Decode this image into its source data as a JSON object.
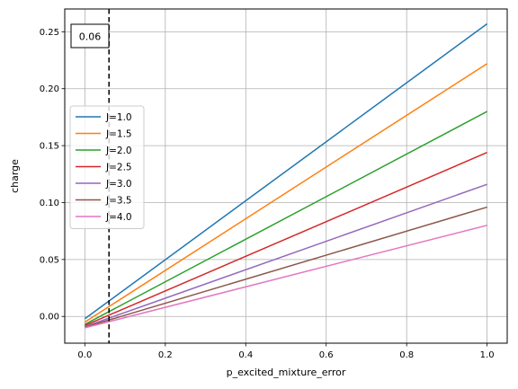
{
  "chart_data": {
    "type": "line",
    "title": "",
    "xlabel": "p_excited_mixture_error",
    "ylabel": "charge",
    "xlim": [
      -0.05,
      1.05
    ],
    "ylim": [
      -0.0235,
      0.27
    ],
    "xticks": [
      0.0,
      0.2,
      0.4,
      0.6,
      0.8,
      1.0
    ],
    "xtick_labels": [
      "0.0",
      "0.2",
      "0.4",
      "0.6",
      "0.8",
      "1.0"
    ],
    "yticks": [
      0.0,
      0.05,
      0.1,
      0.15,
      0.2,
      0.25
    ],
    "ytick_labels": [
      "0.00",
      "0.05",
      "0.10",
      "0.15",
      "0.20",
      "0.25"
    ],
    "grid": true,
    "legend_position": "center-left",
    "x": [
      0.0,
      1.0
    ],
    "series": [
      {
        "name": "J=1.0",
        "color": "#1f77b4",
        "values": [
          -0.002,
          0.257
        ]
      },
      {
        "name": "J=1.5",
        "color": "#ff7f0e",
        "values": [
          -0.005,
          0.222
        ]
      },
      {
        "name": "J=2.0",
        "color": "#2ca02c",
        "values": [
          -0.007,
          0.18
        ]
      },
      {
        "name": "J=2.5",
        "color": "#d62728",
        "values": [
          -0.008,
          0.144
        ]
      },
      {
        "name": "J=3.0",
        "color": "#9467bd",
        "values": [
          -0.009,
          0.116
        ]
      },
      {
        "name": "J=3.5",
        "color": "#8c564b",
        "values": [
          -0.0095,
          0.096
        ]
      },
      {
        "name": "J=4.0",
        "color": "#e377c2",
        "values": [
          -0.01,
          0.08
        ]
      }
    ],
    "vline": {
      "x": 0.06,
      "color": "#000000",
      "style": "dashed"
    },
    "annotation": {
      "text": "0.06"
    }
  }
}
